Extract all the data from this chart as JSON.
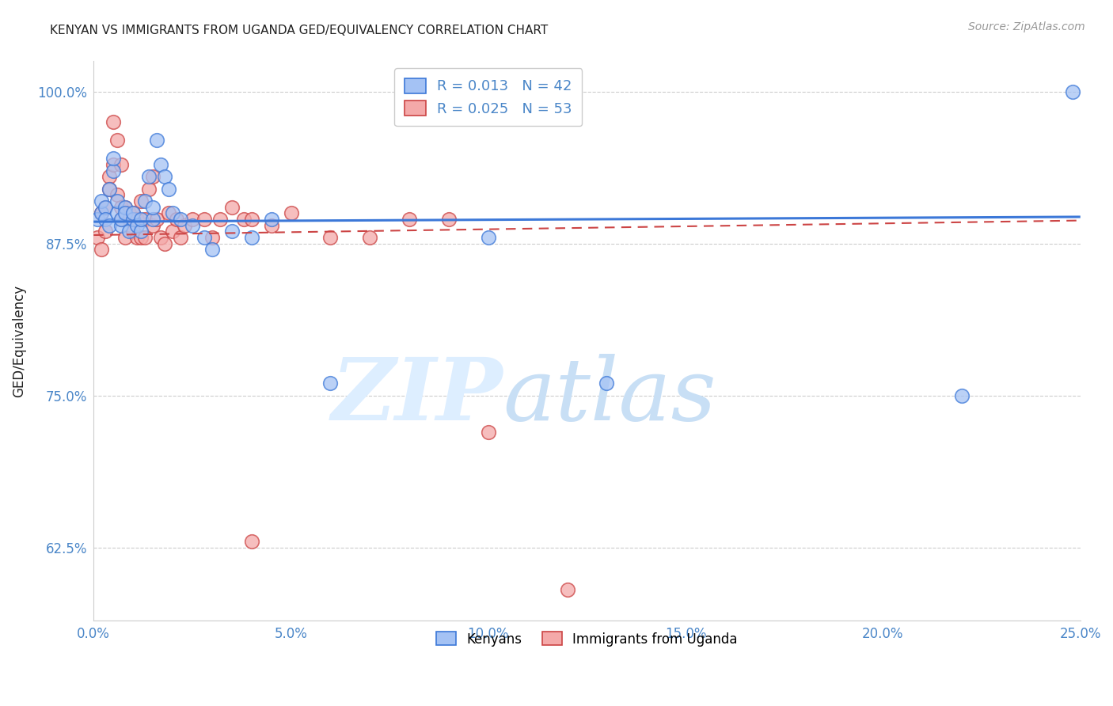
{
  "title": "KENYAN VS IMMIGRANTS FROM UGANDA GED/EQUIVALENCY CORRELATION CHART",
  "source": "Source: ZipAtlas.com",
  "ylabel": "GED/Equivalency",
  "xlim": [
    0.0,
    0.25
  ],
  "ylim": [
    0.565,
    1.025
  ],
  "ytick_vals": [
    0.625,
    0.75,
    0.875,
    1.0
  ],
  "xtick_vals": [
    0.0,
    0.05,
    0.1,
    0.15,
    0.2,
    0.25
  ],
  "kenyan_R": "0.013",
  "kenyan_N": "42",
  "uganda_R": "0.025",
  "uganda_N": "53",
  "blue_color": "#a4c2f4",
  "pink_color": "#f4a9a9",
  "line_blue": "#3c78d8",
  "line_pink": "#cc4444",
  "tick_color": "#4a86c8",
  "grid_color": "#cccccc",
  "title_color": "#222222",
  "source_color": "#999999",
  "ylabel_color": "#222222",
  "kenyan_x": [
    0.001,
    0.002,
    0.002,
    0.003,
    0.003,
    0.004,
    0.004,
    0.005,
    0.005,
    0.006,
    0.006,
    0.007,
    0.007,
    0.008,
    0.008,
    0.009,
    0.01,
    0.01,
    0.011,
    0.012,
    0.012,
    0.013,
    0.014,
    0.015,
    0.015,
    0.016,
    0.017,
    0.018,
    0.019,
    0.02,
    0.022,
    0.025,
    0.028,
    0.03,
    0.035,
    0.04,
    0.045,
    0.06,
    0.1,
    0.13,
    0.22,
    0.248
  ],
  "kenyan_y": [
    0.895,
    0.9,
    0.91,
    0.905,
    0.895,
    0.89,
    0.92,
    0.935,
    0.945,
    0.9,
    0.91,
    0.89,
    0.895,
    0.905,
    0.9,
    0.885,
    0.895,
    0.9,
    0.89,
    0.885,
    0.895,
    0.91,
    0.93,
    0.895,
    0.905,
    0.96,
    0.94,
    0.93,
    0.92,
    0.9,
    0.895,
    0.89,
    0.88,
    0.87,
    0.885,
    0.88,
    0.895,
    0.76,
    0.88,
    0.76,
    0.75,
    1.0
  ],
  "uganda_x": [
    0.001,
    0.002,
    0.002,
    0.003,
    0.003,
    0.004,
    0.004,
    0.005,
    0.005,
    0.006,
    0.006,
    0.007,
    0.007,
    0.007,
    0.008,
    0.008,
    0.009,
    0.009,
    0.01,
    0.01,
    0.011,
    0.011,
    0.012,
    0.012,
    0.013,
    0.013,
    0.014,
    0.015,
    0.015,
    0.016,
    0.017,
    0.018,
    0.019,
    0.02,
    0.021,
    0.022,
    0.023,
    0.025,
    0.028,
    0.03,
    0.032,
    0.035,
    0.038,
    0.04,
    0.045,
    0.05,
    0.06,
    0.07,
    0.08,
    0.09,
    0.1,
    0.04,
    0.12
  ],
  "uganda_y": [
    0.88,
    0.9,
    0.87,
    0.905,
    0.885,
    0.93,
    0.92,
    0.975,
    0.94,
    0.915,
    0.96,
    0.905,
    0.94,
    0.895,
    0.905,
    0.88,
    0.895,
    0.9,
    0.885,
    0.9,
    0.88,
    0.895,
    0.88,
    0.91,
    0.895,
    0.88,
    0.92,
    0.93,
    0.89,
    0.895,
    0.88,
    0.875,
    0.9,
    0.885,
    0.895,
    0.88,
    0.89,
    0.895,
    0.895,
    0.88,
    0.895,
    0.905,
    0.895,
    0.895,
    0.89,
    0.9,
    0.88,
    0.88,
    0.895,
    0.895,
    0.72,
    0.63,
    0.59
  ],
  "blue_trendline_y0": 0.893,
  "blue_trendline_y1": 0.897,
  "pink_trendline_y0": 0.882,
  "pink_trendline_y1": 0.894
}
